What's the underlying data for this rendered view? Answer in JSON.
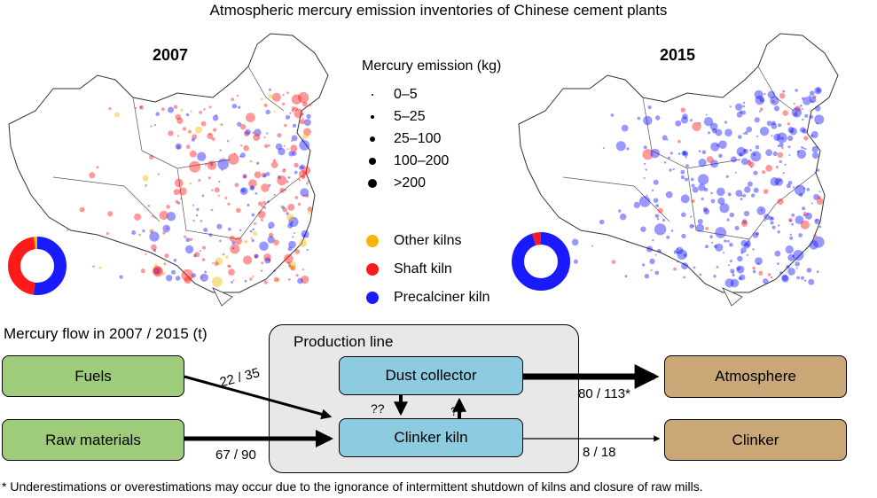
{
  "title": "Atmospheric mercury emission inventories of Chinese cement plants",
  "maps": [
    {
      "year": "2007",
      "donut": {
        "Other kilns": 0.02,
        "Shaft kiln": 0.46,
        "Precalciner kiln": 0.52
      }
    },
    {
      "year": "2015",
      "donut": {
        "Other kilns": 0.0,
        "Shaft kiln": 0.05,
        "Precalciner kiln": 0.95
      }
    }
  ],
  "legend": {
    "title": "Mercury emission (kg)",
    "sizes": [
      "0–5",
      "5–25",
      "25–100",
      "100–200",
      ">200"
    ],
    "kilns": [
      {
        "label": "Other kilns",
        "color": "#f5b800"
      },
      {
        "label": "Shaft kiln",
        "color": "#ff1a1a"
      },
      {
        "label": "Precalciner kiln",
        "color": "#1a1aff"
      }
    ]
  },
  "flow": {
    "title": "Mercury flow in 2007 / 2015 (t)",
    "production_line": "Production line",
    "nodes": {
      "fuels": "Fuels",
      "raw_materials": "Raw materials",
      "dust_collector": "Dust collector",
      "clinker_kiln": "Clinker kiln",
      "atmosphere": "Atmosphere",
      "clinker": "Clinker"
    },
    "labels": {
      "fuels_to_kiln": "22 / 35",
      "raw_to_kiln": "67 / 90",
      "to_atmosphere": "80 / 113*",
      "to_clinker": "8 / 18",
      "unknown_down": "??",
      "unknown_up": "??"
    }
  },
  "footnote": "* Underestimations or overestimations may occur due to the ignorance of intermittent shutdown of kilns and closure of raw mills."
}
